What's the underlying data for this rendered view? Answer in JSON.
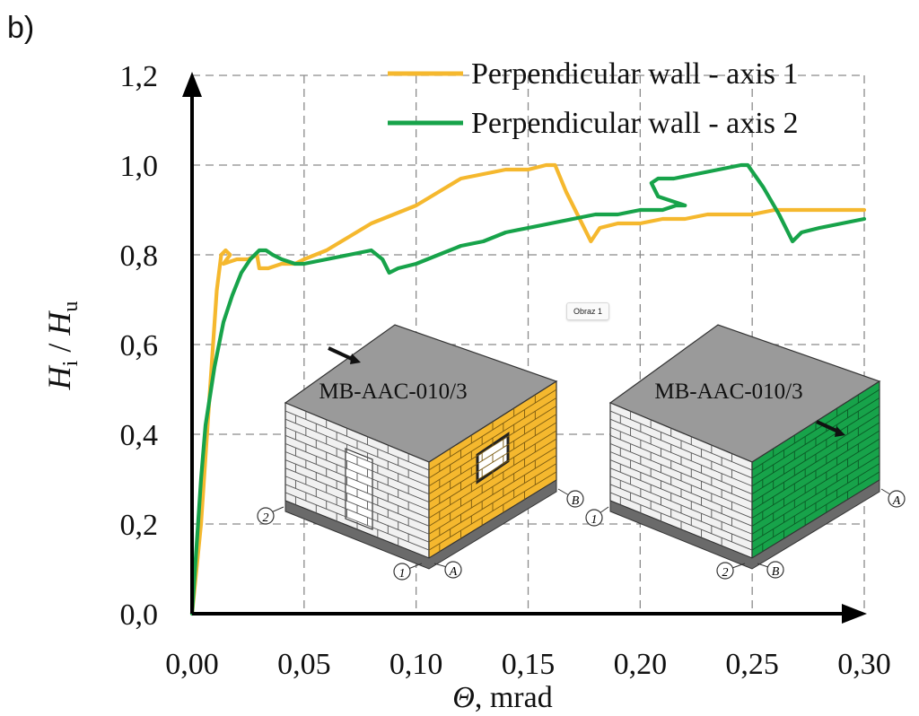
{
  "panel_label": "b)",
  "tooltip_text": "Obraz 1",
  "colors": {
    "axis1": "#f5b82e",
    "axis2": "#17a34a",
    "grid": "#8a8a8a",
    "axis": "#000000",
    "roof": "#9a9a9a",
    "brick_white": "#f1f1f1"
  },
  "inset": {
    "left_model": {
      "title": "MB-AAC-010/3",
      "labels": [
        "2",
        "1",
        "A",
        "B"
      ],
      "highlight": "axis1"
    },
    "right_model": {
      "title": "MB-AAC-010/3",
      "labels": [
        "1",
        "2",
        "B",
        "A"
      ],
      "highlight": "axis2"
    }
  },
  "chart_data": {
    "type": "line",
    "title": "",
    "xlabel_symbol": "Θ",
    "xlabel_unit": ", mrad",
    "ylabel": "H_i / H_u",
    "ylabel_parts": {
      "h1": "H",
      "sub1": "i",
      "sep": " / ",
      "h2": "H",
      "sub2": "u"
    },
    "xlim": [
      0,
      0.3
    ],
    "ylim": [
      0,
      1.2
    ],
    "xticks": [
      0,
      0.05,
      0.1,
      0.15,
      0.2,
      0.25,
      0.3
    ],
    "xtick_labels": [
      "0,00",
      "0,05",
      "0,10",
      "0,15",
      "0,20",
      "0,25",
      "0,30"
    ],
    "yticks": [
      0,
      0.2,
      0.4,
      0.6,
      0.8,
      1.0,
      1.2
    ],
    "ytick_labels": [
      "0,0",
      "0,2",
      "0,4",
      "0,6",
      "0,8",
      "1,0",
      "1,2"
    ],
    "grid": true,
    "legend_position": "top-right",
    "series": [
      {
        "name": "Perpendicular wall - axis 1",
        "color": "#f5b82e",
        "points": [
          [
            0.0,
            0.0
          ],
          [
            0.004,
            0.2
          ],
          [
            0.008,
            0.5
          ],
          [
            0.011,
            0.72
          ],
          [
            0.013,
            0.8
          ],
          [
            0.015,
            0.81
          ],
          [
            0.017,
            0.8
          ],
          [
            0.014,
            0.78
          ],
          [
            0.02,
            0.79
          ],
          [
            0.025,
            0.79
          ],
          [
            0.029,
            0.8
          ],
          [
            0.03,
            0.77
          ],
          [
            0.034,
            0.77
          ],
          [
            0.04,
            0.78
          ],
          [
            0.046,
            0.78
          ],
          [
            0.05,
            0.79
          ],
          [
            0.06,
            0.81
          ],
          [
            0.07,
            0.84
          ],
          [
            0.08,
            0.87
          ],
          [
            0.09,
            0.89
          ],
          [
            0.1,
            0.91
          ],
          [
            0.11,
            0.94
          ],
          [
            0.12,
            0.97
          ],
          [
            0.13,
            0.98
          ],
          [
            0.14,
            0.99
          ],
          [
            0.15,
            0.99
          ],
          [
            0.158,
            1.0
          ],
          [
            0.162,
            1.0
          ],
          [
            0.167,
            0.94
          ],
          [
            0.174,
            0.87
          ],
          [
            0.178,
            0.83
          ],
          [
            0.182,
            0.86
          ],
          [
            0.19,
            0.87
          ],
          [
            0.2,
            0.87
          ],
          [
            0.21,
            0.88
          ],
          [
            0.22,
            0.88
          ],
          [
            0.23,
            0.89
          ],
          [
            0.24,
            0.89
          ],
          [
            0.25,
            0.89
          ],
          [
            0.26,
            0.9
          ],
          [
            0.265,
            0.9
          ],
          [
            0.27,
            0.9
          ],
          [
            0.28,
            0.9
          ],
          [
            0.29,
            0.9
          ],
          [
            0.3,
            0.9
          ]
        ]
      },
      {
        "name": "Perpendicular wall - axis 2",
        "color": "#17a34a",
        "points": [
          [
            0.0,
            0.0
          ],
          [
            0.002,
            0.15
          ],
          [
            0.004,
            0.3
          ],
          [
            0.006,
            0.42
          ],
          [
            0.01,
            0.55
          ],
          [
            0.014,
            0.65
          ],
          [
            0.018,
            0.71
          ],
          [
            0.022,
            0.76
          ],
          [
            0.026,
            0.79
          ],
          [
            0.03,
            0.81
          ],
          [
            0.033,
            0.81
          ],
          [
            0.036,
            0.8
          ],
          [
            0.04,
            0.79
          ],
          [
            0.046,
            0.78
          ],
          [
            0.05,
            0.78
          ],
          [
            0.06,
            0.79
          ],
          [
            0.07,
            0.8
          ],
          [
            0.08,
            0.81
          ],
          [
            0.085,
            0.79
          ],
          [
            0.088,
            0.76
          ],
          [
            0.092,
            0.77
          ],
          [
            0.1,
            0.78
          ],
          [
            0.11,
            0.8
          ],
          [
            0.12,
            0.82
          ],
          [
            0.13,
            0.83
          ],
          [
            0.14,
            0.85
          ],
          [
            0.15,
            0.86
          ],
          [
            0.16,
            0.87
          ],
          [
            0.17,
            0.88
          ],
          [
            0.18,
            0.89
          ],
          [
            0.19,
            0.89
          ],
          [
            0.2,
            0.9
          ],
          [
            0.21,
            0.9
          ],
          [
            0.216,
            0.91
          ],
          [
            0.22,
            0.91
          ],
          [
            0.214,
            0.92
          ],
          [
            0.208,
            0.93
          ],
          [
            0.205,
            0.96
          ],
          [
            0.208,
            0.97
          ],
          [
            0.215,
            0.97
          ],
          [
            0.225,
            0.98
          ],
          [
            0.235,
            0.99
          ],
          [
            0.245,
            1.0
          ],
          [
            0.248,
            1.0
          ],
          [
            0.255,
            0.95
          ],
          [
            0.262,
            0.89
          ],
          [
            0.268,
            0.83
          ],
          [
            0.272,
            0.85
          ],
          [
            0.28,
            0.86
          ],
          [
            0.29,
            0.87
          ],
          [
            0.3,
            0.88
          ]
        ]
      }
    ]
  }
}
